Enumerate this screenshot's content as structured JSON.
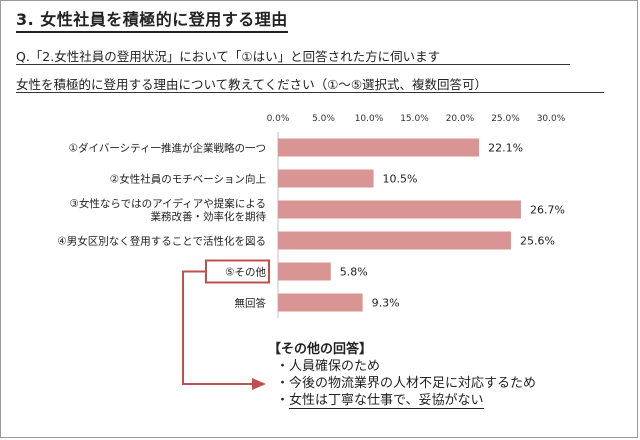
{
  "header": {
    "title": "3. 女性社員を積極的に登用する理由",
    "question_line1": "Q.「2.女性社員の登用状況」において「①はい」と回答された方に伺います",
    "question_line2": "女性を積極的に登用する理由について教えてください（①～⑤選択式、複数回答可）"
  },
  "chart_data": {
    "type": "bar",
    "orientation": "horizontal",
    "categories": [
      "①ダイバーシティ一推進が企業戦略の一つ",
      "②女性社員のモチベーション向上",
      "③女性ならではのアイディアや提案による業務改善・効率化を期待",
      "④男女区別なく登用することで活性化を図る",
      "⑤その他",
      "無回答"
    ],
    "category_lines": [
      [
        "①ダイバーシティ一推進が企業戦略の一つ"
      ],
      [
        "②女性社員のモチベーション向上"
      ],
      [
        "③女性ならではのアイディアや提案による",
        "業務改善・効率化を期待"
      ],
      [
        "④男女区別なく登用することで活性化を図る"
      ],
      [
        "⑤その他"
      ],
      [
        "無回答"
      ]
    ],
    "values": [
      22.1,
      10.5,
      26.7,
      25.6,
      5.8,
      9.3
    ],
    "value_labels": [
      "22.1%",
      "10.5%",
      "26.7%",
      "25.6%",
      "5.8%",
      "9.3%"
    ],
    "xlim": [
      0,
      30
    ],
    "ticks": [
      "0.0%",
      "5.0%",
      "10.0%",
      "15.0%",
      "20.0%",
      "25.0%",
      "30.0%"
    ],
    "bar_color": "#d99594",
    "highlight_color": "#c0504d",
    "highlight_index": 4,
    "grid": false
  },
  "others": {
    "title": "【その他の回答】",
    "items": [
      "人員確保のため",
      "今後の物流業界の人材不足に対応するため",
      "女性は丁寧な仕事で、妥協がない"
    ]
  }
}
